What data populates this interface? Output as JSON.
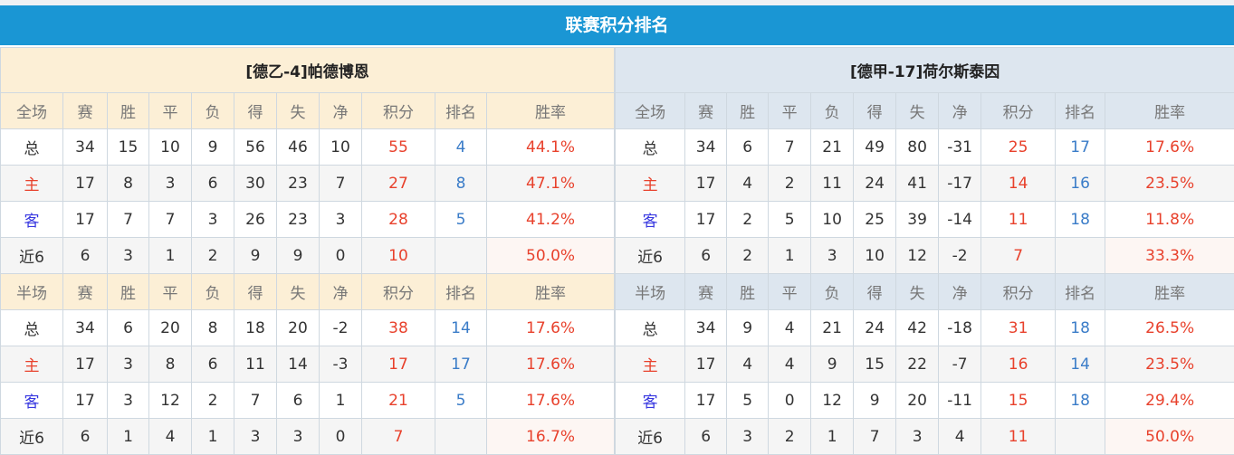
{
  "title": "联赛积分排名",
  "headers_full": [
    "全场",
    "赛",
    "胜",
    "平",
    "负",
    "得",
    "失",
    "净",
    "积分",
    "排名",
    "胜率"
  ],
  "headers_half": [
    "半场",
    "赛",
    "胜",
    "平",
    "负",
    "得",
    "失",
    "净",
    "积分",
    "排名",
    "胜率"
  ],
  "teams": [
    {
      "name": "[德乙-4]帕德博恩",
      "full": [
        [
          "总",
          "34",
          "15",
          "10",
          "9",
          "56",
          "46",
          "10",
          "55",
          "4",
          "44.1%"
        ],
        [
          "主",
          "17",
          "8",
          "3",
          "6",
          "30",
          "23",
          "7",
          "27",
          "8",
          "47.1%"
        ],
        [
          "客",
          "17",
          "7",
          "7",
          "3",
          "26",
          "23",
          "3",
          "28",
          "5",
          "41.2%"
        ],
        [
          "近6",
          "6",
          "3",
          "1",
          "2",
          "9",
          "9",
          "0",
          "10",
          "",
          "50.0%"
        ]
      ],
      "half": [
        [
          "总",
          "34",
          "6",
          "20",
          "8",
          "18",
          "20",
          "-2",
          "38",
          "14",
          "17.6%"
        ],
        [
          "主",
          "17",
          "3",
          "8",
          "6",
          "11",
          "14",
          "-3",
          "17",
          "17",
          "17.6%"
        ],
        [
          "客",
          "17",
          "3",
          "12",
          "2",
          "7",
          "6",
          "1",
          "21",
          "5",
          "17.6%"
        ],
        [
          "近6",
          "6",
          "1",
          "4",
          "1",
          "3",
          "3",
          "0",
          "7",
          "",
          "16.7%"
        ]
      ]
    },
    {
      "name": "[德甲-17]荷尔斯泰因",
      "full": [
        [
          "总",
          "34",
          "6",
          "7",
          "21",
          "49",
          "80",
          "-31",
          "25",
          "17",
          "17.6%"
        ],
        [
          "主",
          "17",
          "4",
          "2",
          "11",
          "24",
          "41",
          "-17",
          "14",
          "16",
          "23.5%"
        ],
        [
          "客",
          "17",
          "2",
          "5",
          "10",
          "25",
          "39",
          "-14",
          "11",
          "18",
          "11.8%"
        ],
        [
          "近6",
          "6",
          "2",
          "1",
          "3",
          "10",
          "12",
          "-2",
          "7",
          "",
          "33.3%"
        ]
      ],
      "half": [
        [
          "总",
          "34",
          "9",
          "4",
          "21",
          "24",
          "42",
          "-18",
          "31",
          "18",
          "26.5%"
        ],
        [
          "主",
          "17",
          "4",
          "4",
          "9",
          "15",
          "22",
          "-7",
          "16",
          "14",
          "23.5%"
        ],
        [
          "客",
          "17",
          "5",
          "0",
          "12",
          "9",
          "20",
          "-11",
          "15",
          "18",
          "29.4%"
        ],
        [
          "近6",
          "6",
          "3",
          "2",
          "1",
          "7",
          "3",
          "4",
          "11",
          "",
          "50.0%"
        ]
      ]
    }
  ],
  "colors": {
    "title_bar": "#1a96d4",
    "points": "#e8412c",
    "rank": "#3a7cc8",
    "home": "#e8412c",
    "away": "#3838e0"
  }
}
